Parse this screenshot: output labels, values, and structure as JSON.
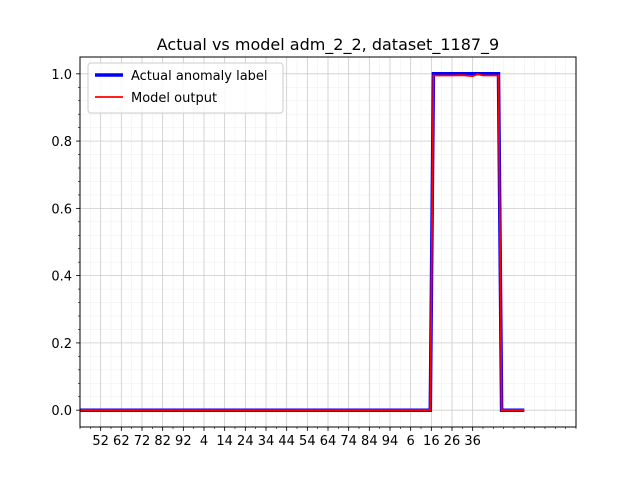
{
  "chart_data": {
    "type": "line",
    "title": "Actual vs model adm_2_2, dataset_1187_9",
    "xlabel": "",
    "ylabel": "",
    "x_tick_labels": [
      "52",
      "62",
      "72",
      "82",
      "92",
      "4",
      "14",
      "24",
      "34",
      "44",
      "54",
      "64",
      "74",
      "84",
      "94",
      "6",
      "16",
      "26",
      "36"
    ],
    "xlim": [
      0,
      48
    ],
    "ylim": [
      -0.05,
      1.05
    ],
    "y_ticks": [
      0.0,
      0.2,
      0.4,
      0.6,
      0.8,
      1.0
    ],
    "y_tick_labels": [
      "0.0",
      "0.2",
      "0.4",
      "0.6",
      "0.8",
      "1.0"
    ],
    "grid": true,
    "legend_position": "top-left",
    "series": [
      {
        "name": "Actual anomaly label",
        "color": "#0000ff",
        "x": [
          0,
          33.9,
          34.2,
          40.5,
          40.8,
          43
        ],
        "y": [
          0,
          0,
          1,
          1,
          0,
          0
        ]
      },
      {
        "name": "Model output",
        "color": "#ff0000",
        "x": [
          0,
          33.9,
          34.2,
          36,
          37,
          38,
          38.5,
          39,
          40.5,
          40.8,
          43
        ],
        "y": [
          0,
          0,
          0.995,
          0.995,
          0.996,
          0.993,
          0.999,
          0.995,
          0.995,
          0,
          0
        ]
      }
    ]
  }
}
